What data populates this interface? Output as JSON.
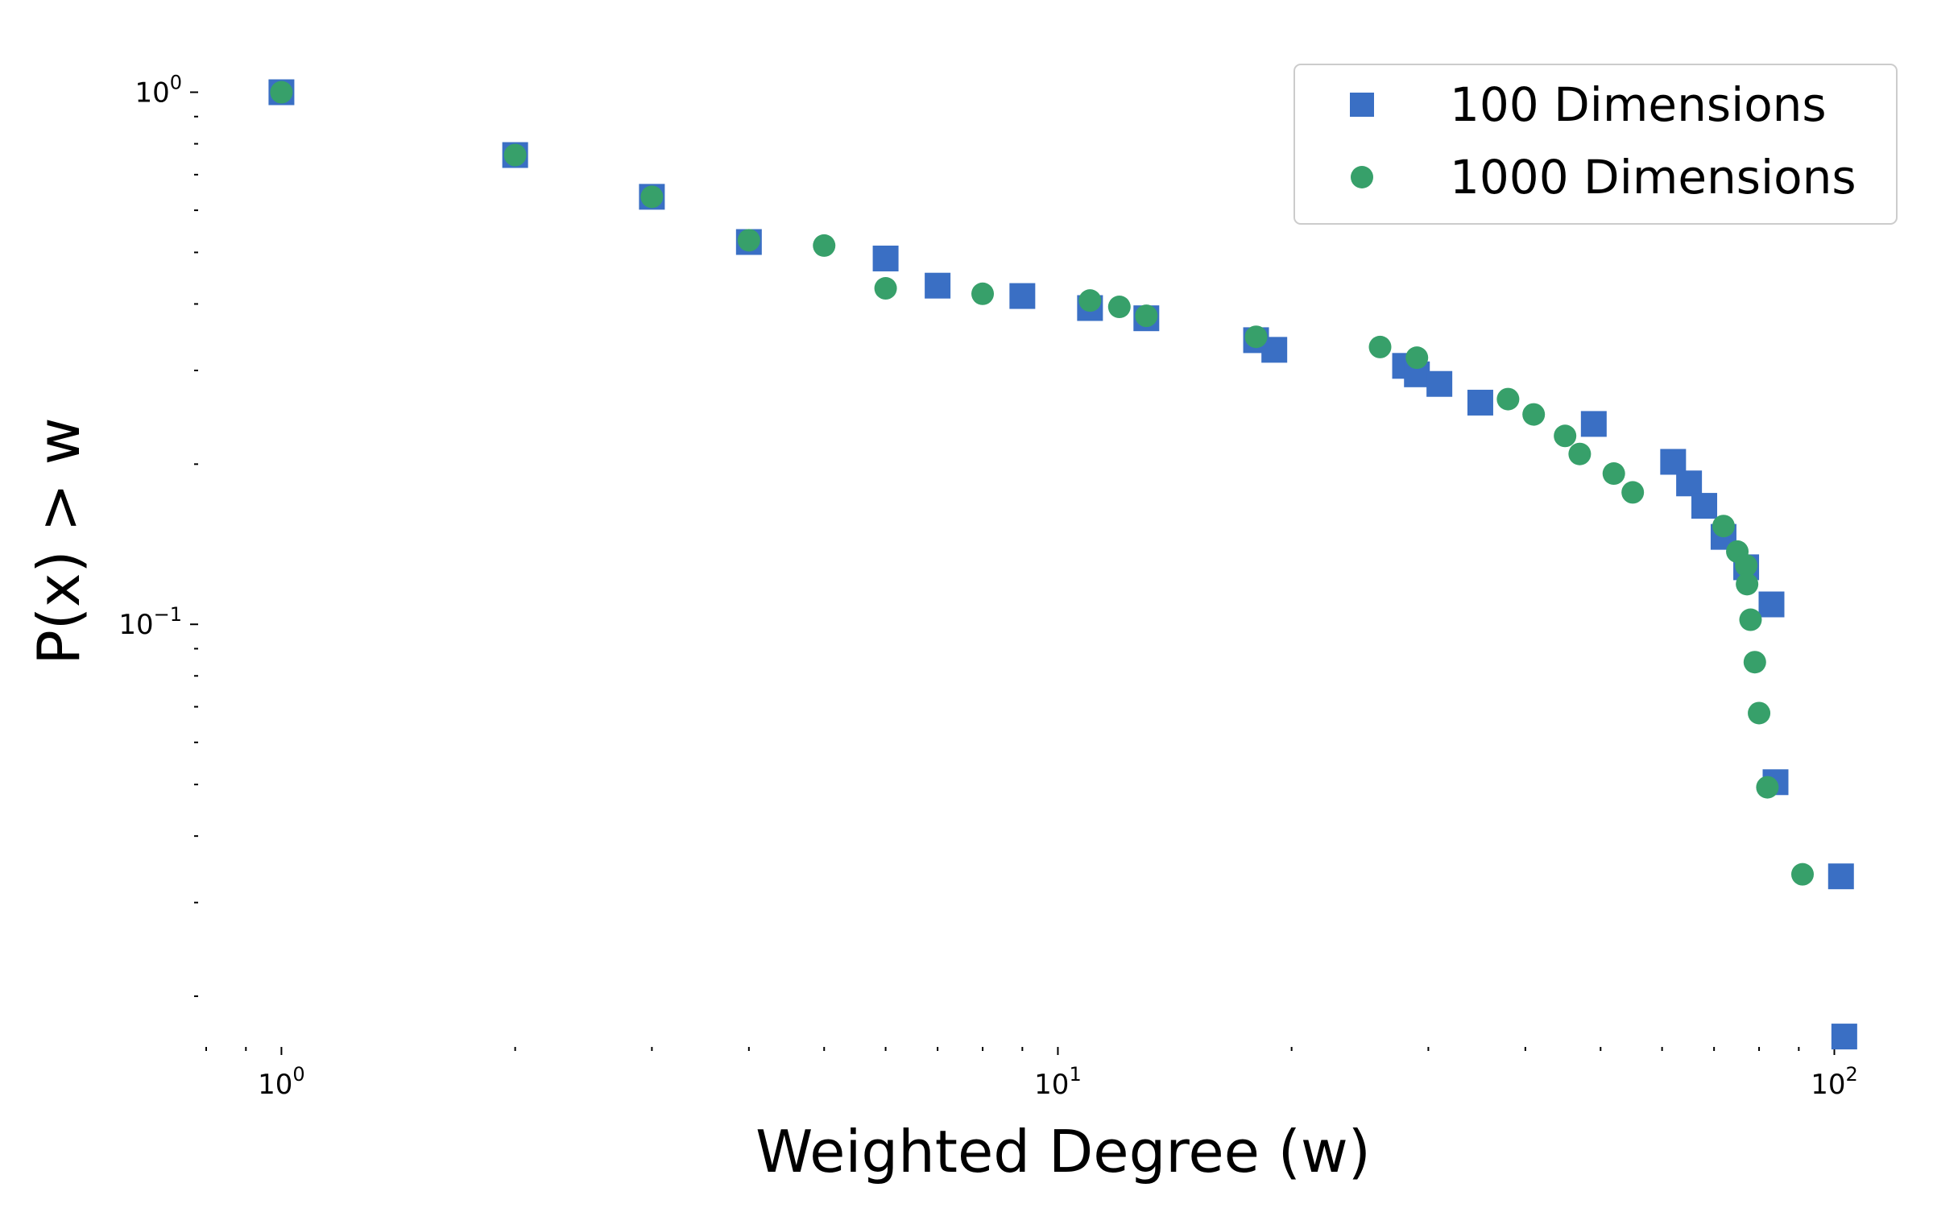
{
  "chart_data": {
    "type": "scatter",
    "xscale": "log",
    "yscale": "log",
    "xlabel": "Weighted Degree (w)",
    "ylabel": "P(x) > w",
    "xlim": [
      0.8,
      115
    ],
    "ylim": [
      0.0171,
      1.12
    ],
    "grid": false,
    "legend_position": "top-right",
    "x_ticks": [
      {
        "value": 1,
        "base": "10",
        "exp": "0"
      },
      {
        "value": 10,
        "base": "10",
        "exp": "1"
      },
      {
        "value": 100,
        "base": "10",
        "exp": "2"
      }
    ],
    "y_ticks": [
      {
        "value": 1,
        "base": "10",
        "exp": "0"
      },
      {
        "value": 0.1,
        "base": "10",
        "exp": "−1"
      }
    ],
    "series": [
      {
        "name": "100 Dimensions",
        "marker": "square",
        "color": "#3a6fc4",
        "x": [
          1.0,
          2.0,
          3.0,
          4.0,
          6.0,
          7.0,
          9.0,
          11.0,
          13.0,
          18.0,
          19.0,
          28.0,
          29.0,
          31.0,
          35.0,
          49.0,
          62.0,
          65.0,
          68.0,
          72.0,
          77.0,
          83.0,
          84.0,
          102.0,
          103.0
        ],
        "y": [
          1.0,
          0.762,
          0.636,
          0.523,
          0.487,
          0.433,
          0.414,
          0.393,
          0.376,
          0.342,
          0.328,
          0.306,
          0.295,
          0.283,
          0.261,
          0.238,
          0.202,
          0.184,
          0.167,
          0.146,
          0.128,
          0.109,
          0.0505,
          0.0336,
          0.0168
        ]
      },
      {
        "name": "1000 Dimensions",
        "marker": "circle",
        "color": "#37a06a",
        "x": [
          1.0,
          2.0,
          3.0,
          4.0,
          5.0,
          6.0,
          8.0,
          11.0,
          12.0,
          13.0,
          18.0,
          26.0,
          29.0,
          38.0,
          41.0,
          45.0,
          47.0,
          52.0,
          55.0,
          72.0,
          75.0,
          77.0,
          77.2,
          78.0,
          79.0,
          80.0,
          82.0,
          91.0
        ],
        "y": [
          1.0,
          0.762,
          0.636,
          0.527,
          0.515,
          0.428,
          0.418,
          0.406,
          0.395,
          0.38,
          0.347,
          0.332,
          0.317,
          0.265,
          0.248,
          0.226,
          0.209,
          0.192,
          0.177,
          0.153,
          0.137,
          0.129,
          0.119,
          0.102,
          0.0849,
          0.0681,
          0.0494,
          0.0339
        ]
      }
    ]
  }
}
